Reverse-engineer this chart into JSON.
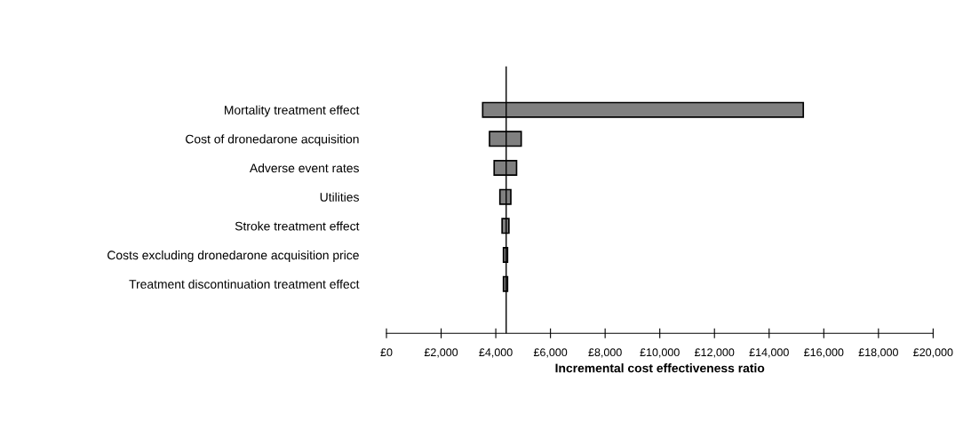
{
  "chart_data": {
    "type": "bar",
    "orientation": "horizontal",
    "xlabel": "Incremental cost effectiveness ratio",
    "categories": [
      "Mortality treatment effect",
      "Cost of dronedarone acquisition",
      "Adverse event rates",
      "Utilities",
      "Stroke treatment effect",
      "Costs excluding dronedarone acquisition price",
      "Treatment discontinuation treatment effect"
    ],
    "base": [
      3520,
      3770,
      3940,
      4150,
      4230,
      4280,
      4280
    ],
    "values": [
      11730,
      1160,
      820,
      400,
      250,
      150,
      150
    ],
    "color": "#808080",
    "xlim": [
      0,
      20000
    ],
    "xticks": [
      {
        "value": 0,
        "label": "£0"
      },
      {
        "value": 2000,
        "label": "£2,000"
      },
      {
        "value": 4000,
        "label": "£4,000"
      },
      {
        "value": 6000,
        "label": "£6,000"
      },
      {
        "value": 8000,
        "label": "£8,000"
      },
      {
        "value": 10000,
        "label": "£10,000"
      },
      {
        "value": 12000,
        "label": "£12,000"
      },
      {
        "value": 14000,
        "label": "£14,000"
      },
      {
        "value": 16000,
        "label": "£16,000"
      },
      {
        "value": 18000,
        "label": "£18,000"
      },
      {
        "value": 20000,
        "label": "£20,000"
      }
    ],
    "ref_lines": [
      {
        "axis": "x",
        "value": 4380,
        "color": "#000000"
      }
    ],
    "grid": false,
    "legend": false
  }
}
